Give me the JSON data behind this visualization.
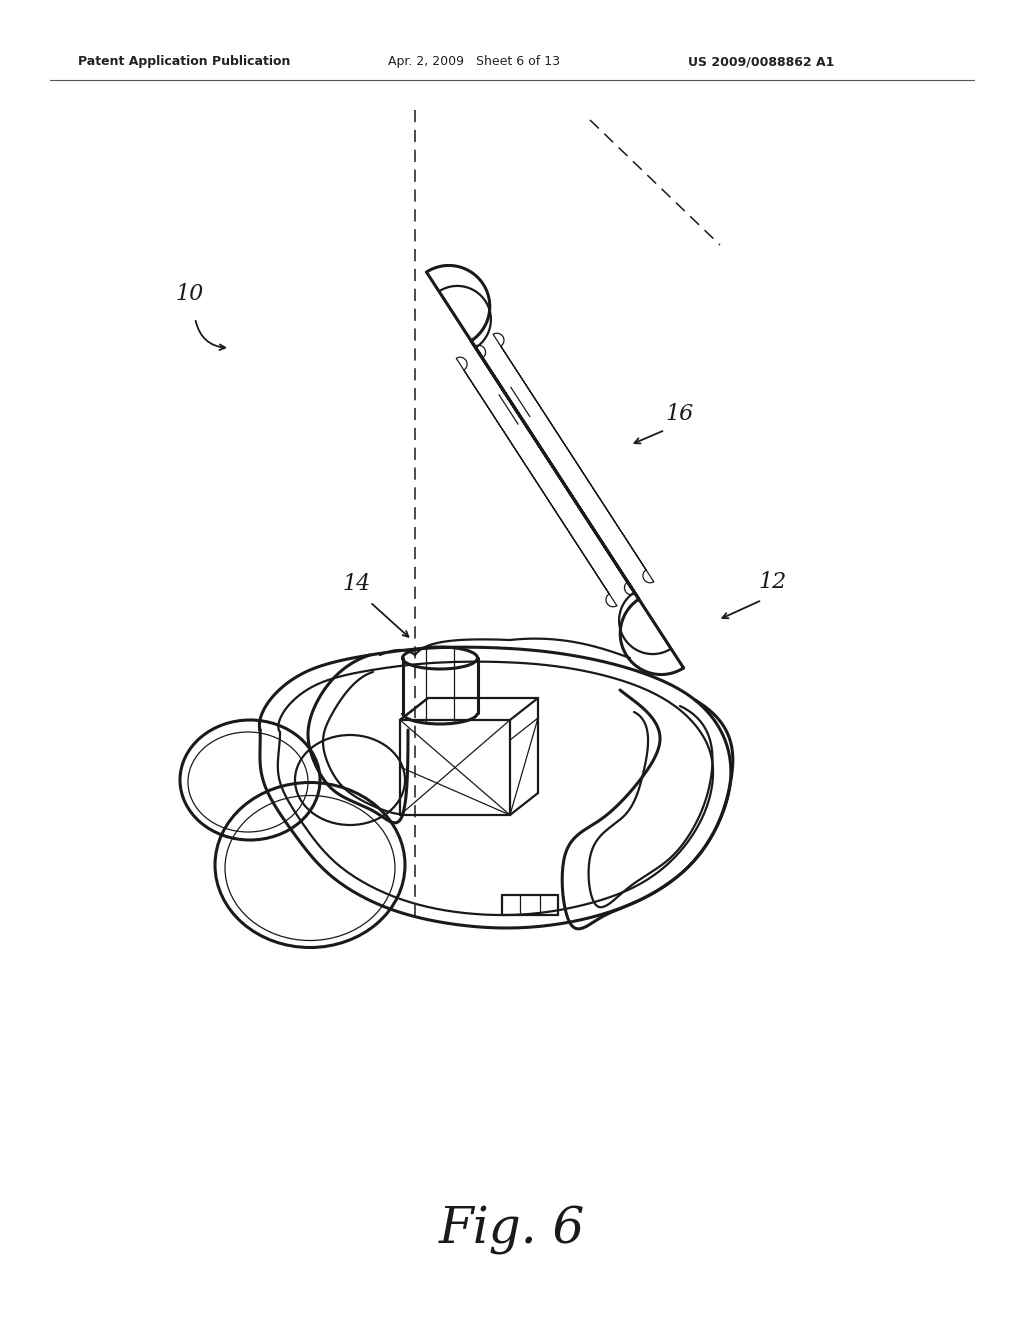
{
  "bg_color": "#ffffff",
  "line_color": "#1a1a1a",
  "header_left": "Patent Application Publication",
  "header_mid": "Apr. 2, 2009   Sheet 6 of 13",
  "header_right": "US 2009/0088862 A1",
  "fig_label": "Fig. 6",
  "lw_main": 1.6,
  "lw_thin": 0.9,
  "lw_thick": 2.2
}
